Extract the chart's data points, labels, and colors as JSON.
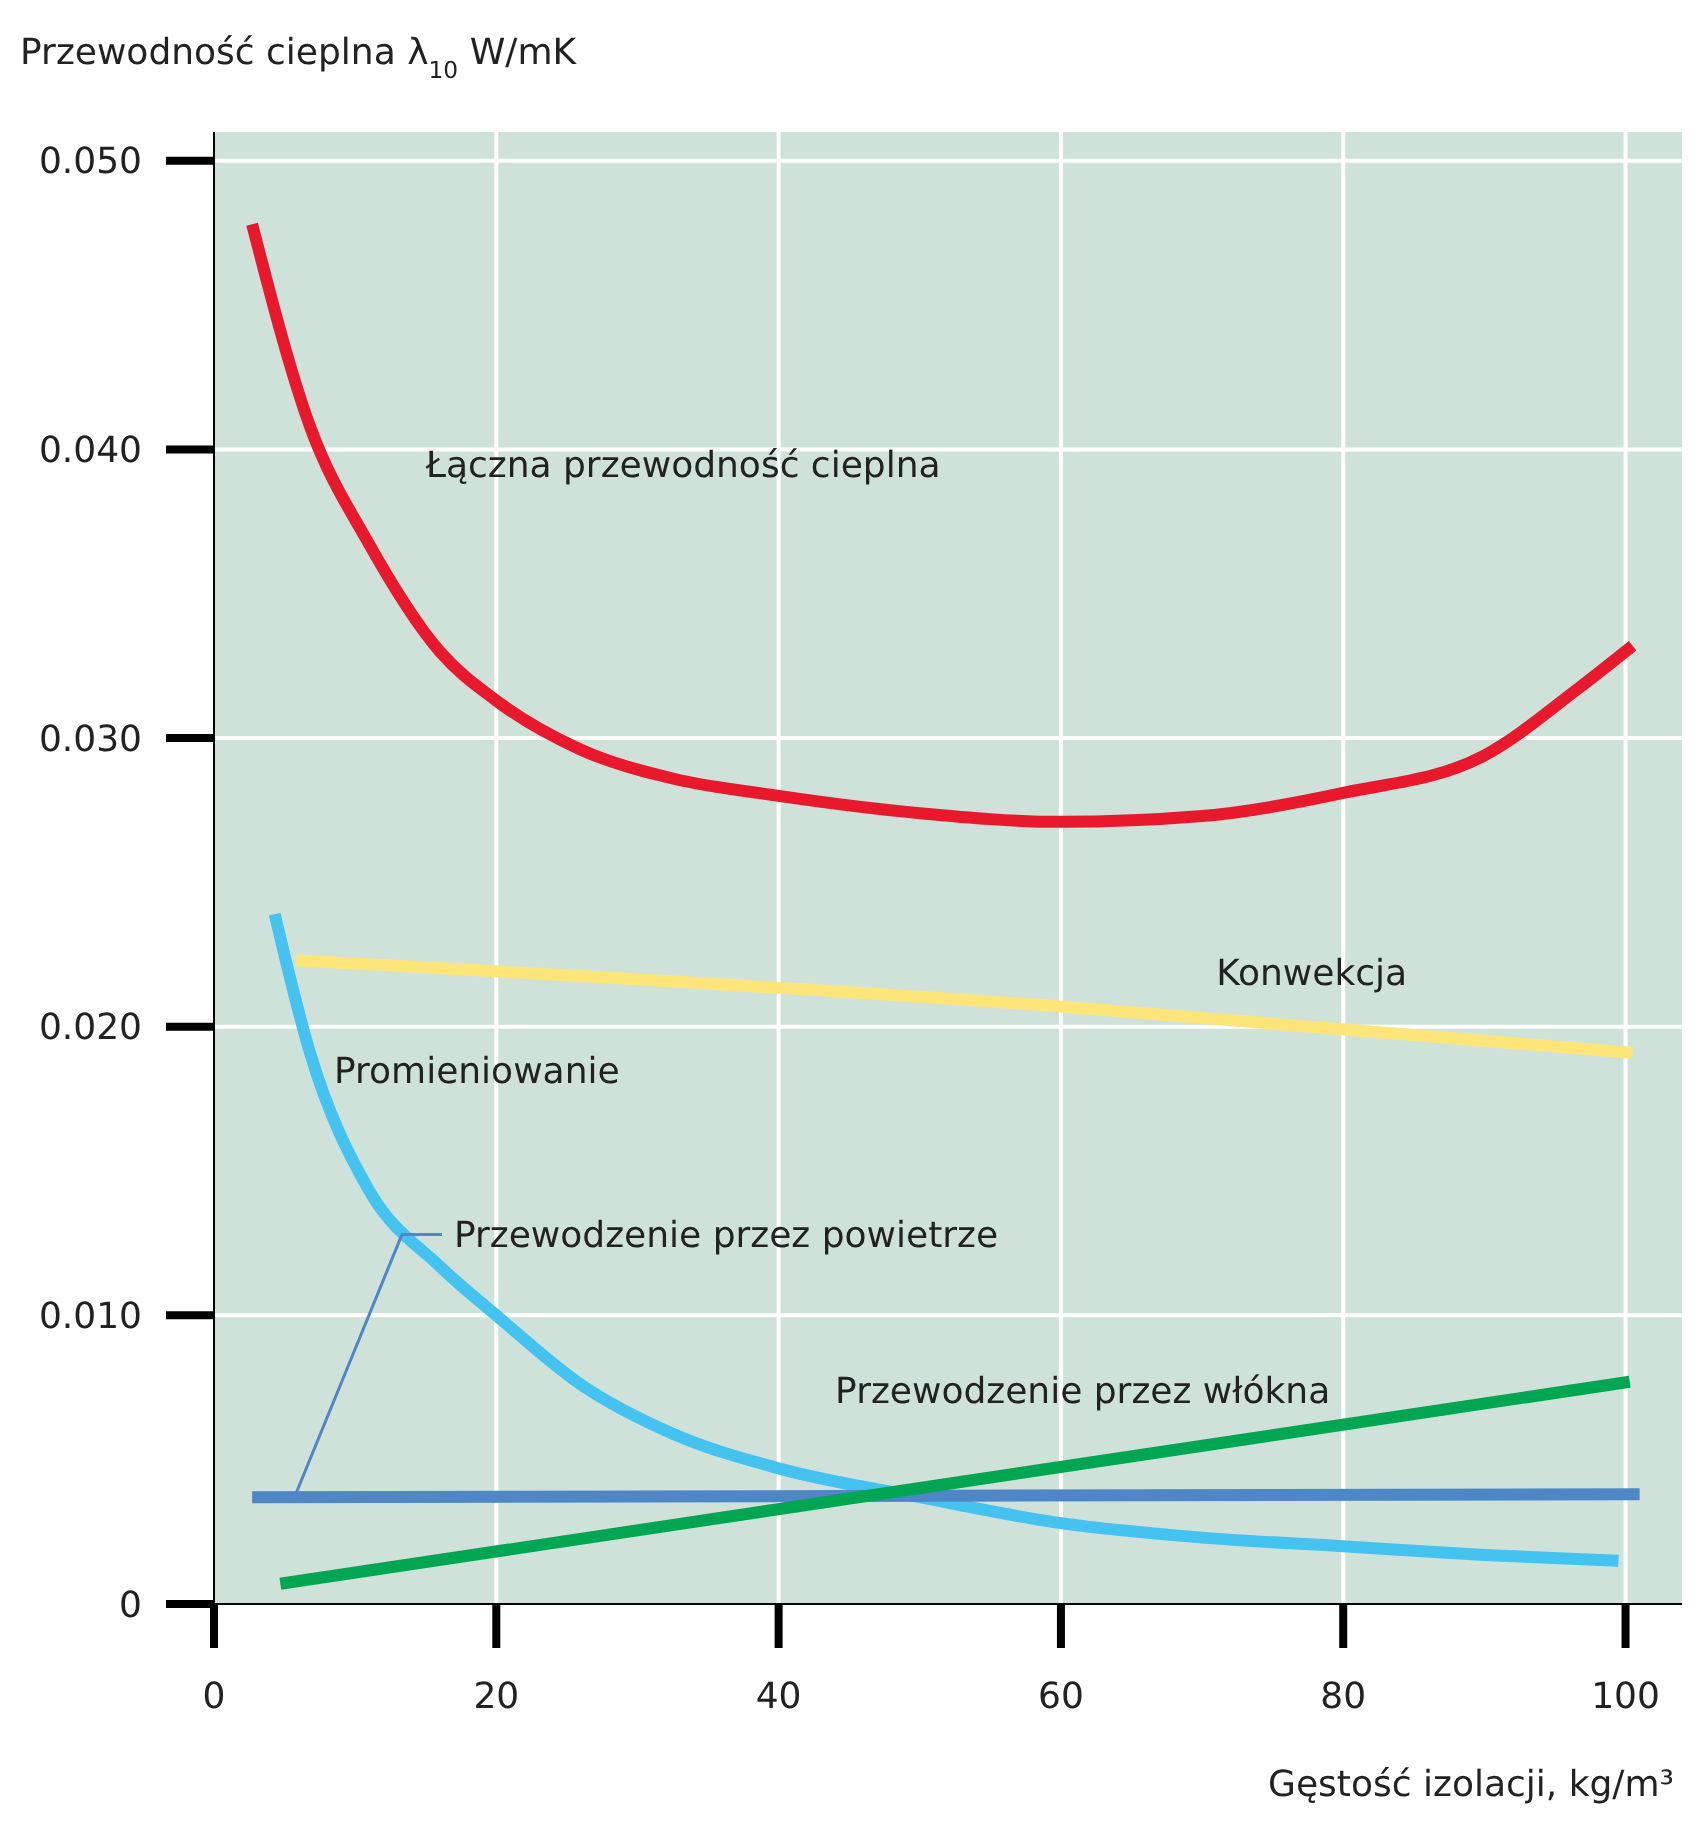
{
  "chart_data": {
    "type": "line",
    "ylabel": "Przewodność cieplna λ$_{10}$ W/mK",
    "xlabel": "Gęstość izolacji, kg/m³",
    "xlim": [
      0,
      104
    ],
    "xticks": [
      0,
      20,
      40,
      60,
      80,
      100
    ],
    "ylim": [
      0,
      0.051
    ],
    "yticks": [
      {
        "value": 0,
        "label": "0"
      },
      {
        "value": 0.01,
        "label": "0.010"
      },
      {
        "value": 0.02,
        "label": "0.020"
      },
      {
        "value": 0.03,
        "label": "0.030"
      },
      {
        "value": 0.04,
        "label": "0.040"
      },
      {
        "value": 0.05,
        "label": "0.050"
      }
    ],
    "grid": true,
    "legend": false,
    "line_style": "solid",
    "marker": "none",
    "series": [
      {
        "name": "Łączna przewodność cieplna",
        "color": "#e8192c",
        "x": [
          2.7,
          6.8,
          10.9,
          16,
          20,
          26,
          32.5,
          40,
          50,
          60,
          70,
          80,
          90,
          96.6,
          100.5
        ],
        "values": [
          0.0478,
          0.0408,
          0.0368,
          0.033,
          0.0313,
          0.0296,
          0.0286,
          0.028,
          0.0274,
          0.0271,
          0.0273,
          0.0281,
          0.0294,
          0.0317,
          0.0332
        ]
      },
      {
        "name": "Konwekcja",
        "color": "#fde57a",
        "x": [
          5.8,
          60,
          100.5
        ],
        "values": [
          0.0223,
          0.0207,
          0.0191
        ]
      },
      {
        "name": "Promieniowanie",
        "color": "#45c3f0",
        "x": [
          4.3,
          6.8,
          10.9,
          16,
          20,
          26,
          32.5,
          40,
          50,
          60,
          70,
          80,
          90,
          99.5
        ],
        "values": [
          0.0239,
          0.0191,
          0.0144,
          0.0117,
          0.01,
          0.0076,
          0.0059,
          0.0047,
          0.0037,
          0.0028,
          0.0023,
          0.002,
          0.0017,
          0.0015
        ]
      },
      {
        "name": "Przewodzenie przez powietrze",
        "color": "#4f86c6",
        "x": [
          2.7,
          101
        ],
        "values": [
          0.0037,
          0.0038
        ]
      },
      {
        "name": "Przewodzenie przez włókna",
        "color": "#00a651",
        "x": [
          4.7,
          100.3
        ],
        "values": [
          0.0007,
          0.0077
        ]
      }
    ]
  }
}
